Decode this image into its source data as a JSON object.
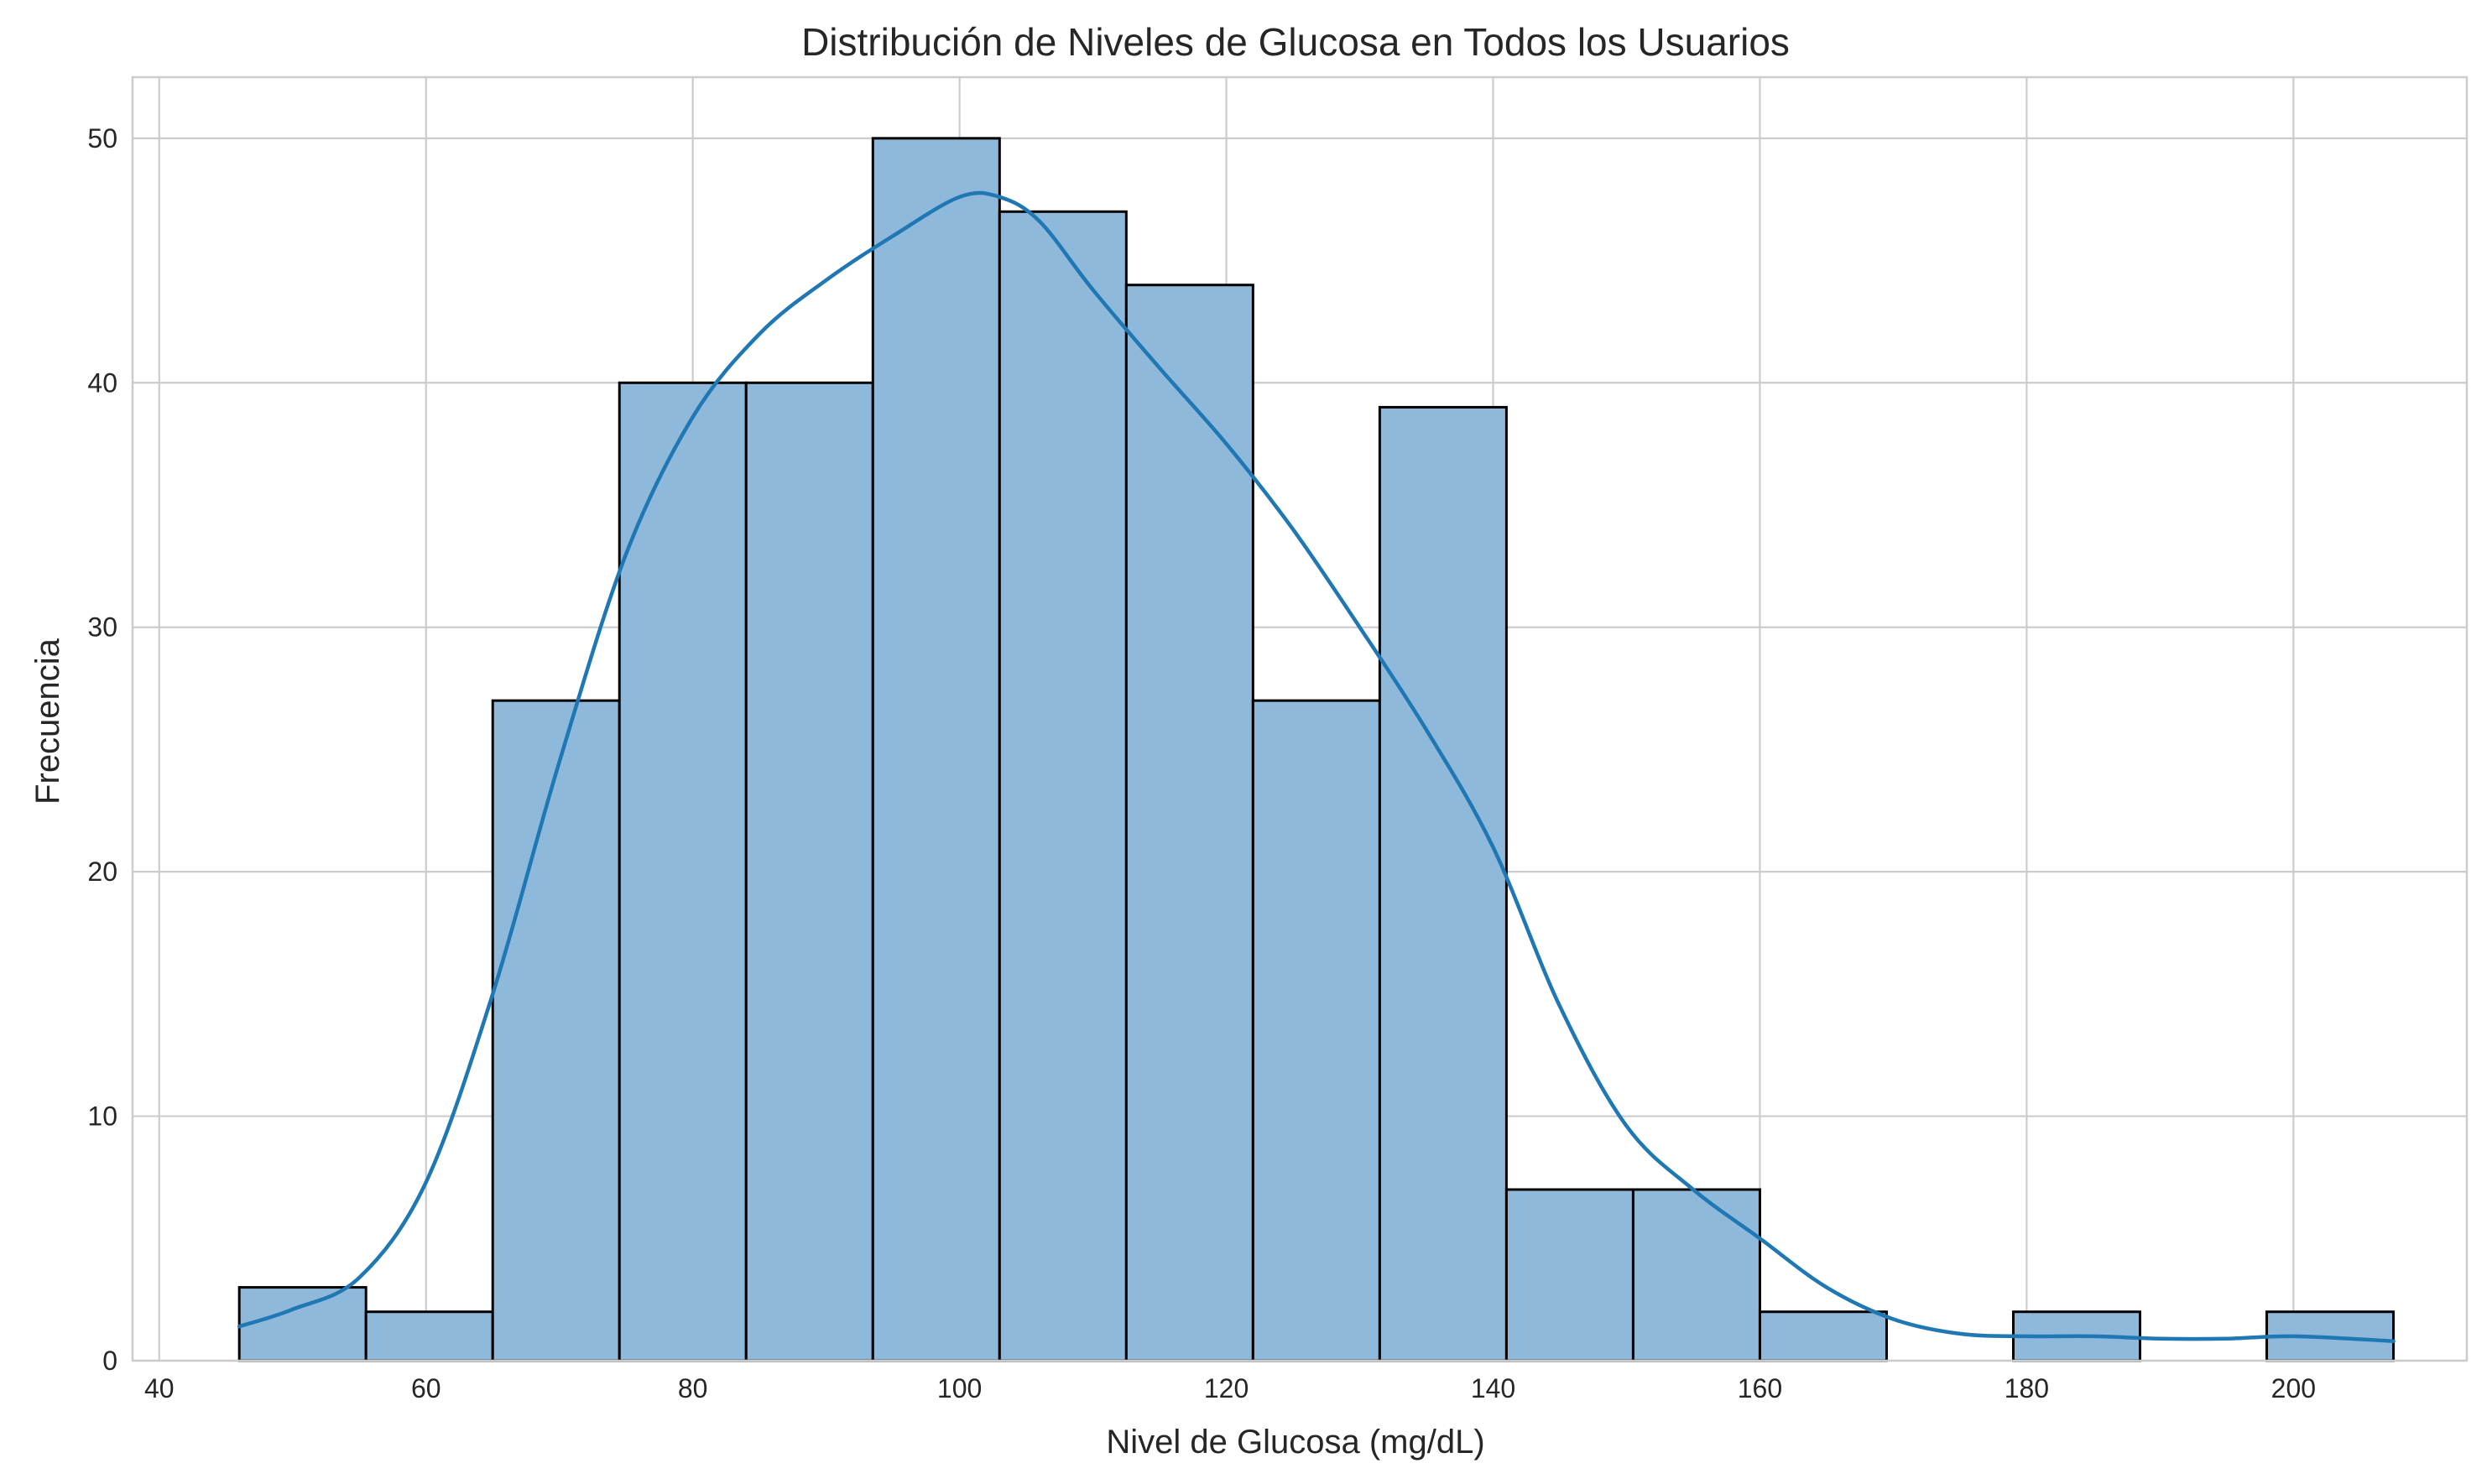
{
  "chart_data": {
    "type": "bar",
    "subtype": "histogram-with-kde",
    "title": "Distribución de Niveles de Glucosa en Todos los Usuarios",
    "xlabel": "Nivel de Glucosa (mg/dL)",
    "ylabel": "Frecuencia",
    "xlim": [
      38,
      213
    ],
    "ylim": [
      0,
      52.5
    ],
    "xticks": [
      40,
      60,
      80,
      100,
      120,
      140,
      160,
      180,
      200
    ],
    "yticks": [
      0,
      10,
      20,
      30,
      40,
      50
    ],
    "grid": true,
    "colors": {
      "bar_fill": "#8fb9da",
      "bar_edge": "#000000",
      "kde_line": "#1f77b4",
      "grid": "#cccccc"
    },
    "bins": [
      {
        "x0": 46.0,
        "x1": 55.5,
        "count": 3
      },
      {
        "x0": 55.5,
        "x1": 65.0,
        "count": 2
      },
      {
        "x0": 65.0,
        "x1": 74.5,
        "count": 27
      },
      {
        "x0": 74.5,
        "x1": 84.0,
        "count": 40
      },
      {
        "x0": 84.0,
        "x1": 93.5,
        "count": 40
      },
      {
        "x0": 93.5,
        "x1": 103.0,
        "count": 50
      },
      {
        "x0": 103.0,
        "x1": 112.5,
        "count": 47
      },
      {
        "x0": 112.5,
        "x1": 122.0,
        "count": 44
      },
      {
        "x0": 122.0,
        "x1": 131.5,
        "count": 27
      },
      {
        "x0": 131.5,
        "x1": 141.0,
        "count": 39
      },
      {
        "x0": 141.0,
        "x1": 150.5,
        "count": 7
      },
      {
        "x0": 150.5,
        "x1": 160.0,
        "count": 7
      },
      {
        "x0": 160.0,
        "x1": 169.5,
        "count": 2
      },
      {
        "x0": 169.5,
        "x1": 179.0,
        "count": 0
      },
      {
        "x0": 179.0,
        "x1": 188.5,
        "count": 2
      },
      {
        "x0": 188.5,
        "x1": 198.0,
        "count": 0
      },
      {
        "x0": 198.0,
        "x1": 207.5,
        "count": 2
      }
    ],
    "kde": {
      "x": [
        46,
        50,
        55,
        60,
        65,
        70,
        75,
        80,
        85,
        90,
        95,
        100,
        103,
        106,
        110,
        115,
        120,
        125,
        130,
        135,
        140,
        145,
        150,
        155,
        160,
        165,
        170,
        175,
        180,
        185,
        190,
        195,
        200,
        207.5
      ],
      "y": [
        1.4,
        2.1,
        3.4,
        7.3,
        15.0,
        24.5,
        33.0,
        38.6,
        42.0,
        44.2,
        46.0,
        47.6,
        47.6,
        46.6,
        43.8,
        40.6,
        37.5,
        34.0,
        30.0,
        25.8,
        21.0,
        14.5,
        9.6,
        7.0,
        5.0,
        3.0,
        1.7,
        1.1,
        1.0,
        1.0,
        0.9,
        0.9,
        1.0,
        0.8
      ]
    }
  }
}
